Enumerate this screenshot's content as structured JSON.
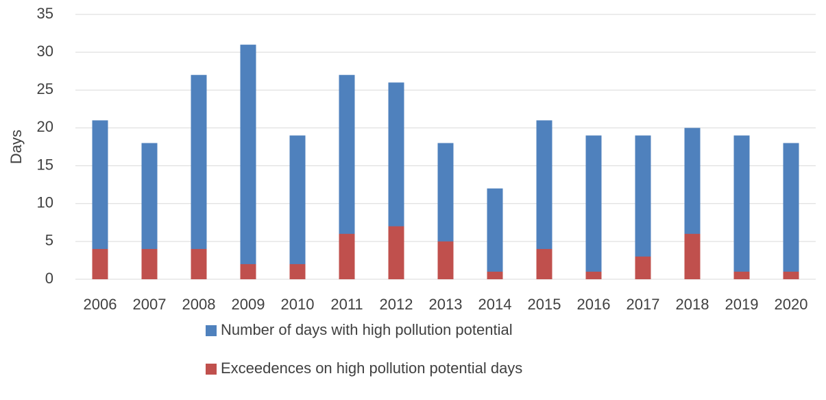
{
  "chart_data": {
    "type": "bar",
    "y_label": "Days",
    "categories": [
      "2006",
      "2007",
      "2008",
      "2009",
      "2010",
      "2011",
      "2012",
      "2013",
      "2014",
      "2015",
      "2016",
      "2017",
      "2018",
      "2019",
      "2020"
    ],
    "series": [
      {
        "name": "Number of days with high pollution potential",
        "color": "#4f81bd",
        "values": [
          21,
          18,
          27,
          31,
          19,
          27,
          26,
          18,
          12,
          21,
          19,
          19,
          20,
          19,
          18
        ]
      },
      {
        "name": "Exceedences on high pollution potential days",
        "color": "#c0504d",
        "values": [
          4,
          4,
          4,
          2,
          2,
          6,
          7,
          5,
          1,
          4,
          1,
          3,
          6,
          1,
          1
        ]
      }
    ],
    "overlap": true,
    "ylim": [
      0,
      35
    ],
    "yticks": [
      0,
      5,
      10,
      15,
      20,
      25,
      30,
      35
    ],
    "grid": true
  }
}
